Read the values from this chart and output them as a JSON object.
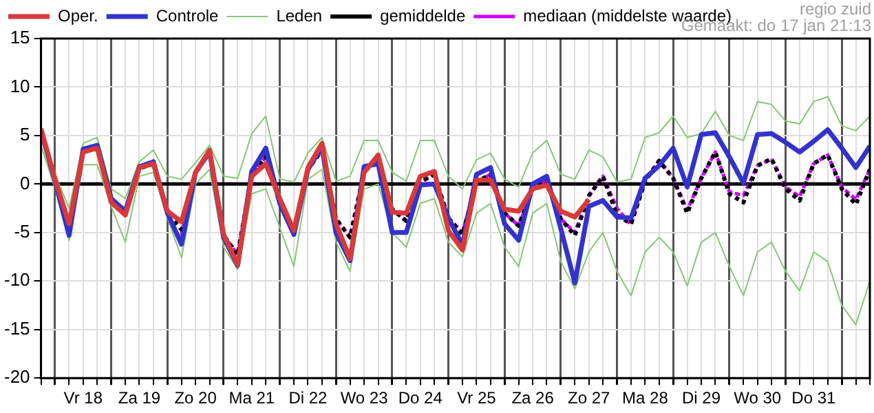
{
  "chart_data": {
    "type": "line",
    "annotations": [
      "regio zuid",
      "Gemaakt: do 17 jan 21:13"
    ],
    "x": [
      "--01-17T18:00",
      "--01-18T00:00",
      "--01-18T06:00",
      "--01-18T12:00",
      "--01-18T18:00",
      "--01-19T00:00",
      "--01-19T06:00",
      "--01-19T12:00",
      "--01-19T18:00",
      "--01-20T00:00",
      "--01-20T06:00",
      "--01-20T12:00",
      "--01-20T18:00",
      "--01-21T00:00",
      "--01-21T06:00",
      "--01-21T12:00",
      "--01-21T18:00",
      "--01-22T00:00",
      "--01-22T06:00",
      "--01-22T12:00",
      "--01-22T18:00",
      "--01-23T00:00",
      "--01-23T06:00",
      "--01-23T12:00",
      "--01-23T18:00",
      "--01-24T00:00",
      "--01-24T06:00",
      "--01-24T12:00",
      "--01-24T18:00",
      "--01-25T00:00",
      "--01-25T06:00",
      "--01-25T12:00",
      "--01-25T18:00",
      "--01-26T00:00",
      "--01-26T06:00",
      "--01-26T12:00",
      "--01-26T18:00",
      "--01-27T00:00",
      "--01-27T06:00",
      "--01-27T12:00",
      "--01-27T18:00",
      "--01-28T00:00",
      "--01-28T06:00",
      "--01-28T12:00",
      "--01-28T18:00",
      "--01-29T00:00",
      "--01-29T06:00",
      "--01-29T12:00",
      "--01-29T18:00",
      "--01-30T00:00",
      "--01-30T06:00",
      "--01-30T12:00",
      "--01-30T18:00",
      "--01-31T00:00",
      "--01-31T06:00",
      "--01-31T12:00",
      "--01-31T18:00",
      "--02-01T00:00",
      "--02-01T06:00",
      "--02-01T12:00"
    ],
    "series": [
      {
        "name": "Oper.",
        "color": "#d83a3a",
        "line_style": "solid",
        "values": [
          5.7,
          0.5,
          -4.1,
          3.3,
          3.7,
          -1.9,
          -3.2,
          1.7,
          2.1,
          -2.8,
          -3.9,
          1.2,
          3.5,
          -5.2,
          -8.3,
          0.8,
          2.1,
          -1.5,
          -4.8,
          1.7,
          4.2,
          -4.1,
          -7.7,
          1.2,
          3.0,
          -2.9,
          -3.0,
          0.8,
          1.3,
          -4.8,
          -6.8,
          0.4,
          0.4,
          -2.6,
          -2.8,
          -0.5,
          -0.1,
          -2.8,
          -3.4,
          -1.6,
          null,
          null,
          null,
          null,
          null,
          null,
          null,
          null,
          null,
          null,
          null,
          null,
          null,
          null,
          null,
          null,
          null,
          null,
          null,
          null
        ]
      },
      {
        "name": "Controle",
        "color": "#3333cc",
        "line_style": "solid",
        "values": [
          5.5,
          0.3,
          -5.3,
          3.6,
          4.0,
          -1.5,
          -2.8,
          1.8,
          2.3,
          -3.0,
          -6.2,
          1.2,
          3.3,
          -5.5,
          -8.4,
          1.3,
          3.7,
          -2.0,
          -5.2,
          1.5,
          3.8,
          -5.0,
          -7.9,
          1.8,
          2.1,
          -5.0,
          -5.0,
          -0.1,
          0.0,
          -3.5,
          -6.3,
          1.0,
          1.7,
          -4.1,
          -5.8,
          0.0,
          0.8,
          -4.6,
          -10.2,
          -2.3,
          -1.7,
          -3.4,
          -3.5,
          0.6,
          1.9,
          3.7,
          -0.3,
          5.1,
          5.3,
          2.8,
          0.1,
          5.1,
          5.2,
          4.3,
          3.3,
          4.4,
          5.6,
          3.7,
          1.7,
          3.9
        ]
      },
      {
        "name": "Leden",
        "color": "#86c776",
        "line_style": "solid",
        "values": [
          null,
          1.0,
          -2.5,
          4.2,
          4.8,
          -0.5,
          -1.5,
          2.3,
          3.5,
          0.8,
          0.5,
          2.2,
          4.0,
          0.8,
          0.6,
          5.2,
          7.0,
          0.5,
          0.2,
          3.2,
          4.8,
          0.3,
          0.8,
          4.5,
          4.5,
          1.2,
          0.3,
          4.5,
          4.5,
          0.8,
          -0.5,
          2.5,
          3.2,
          0.5,
          -0.3,
          3.2,
          4.5,
          1.0,
          0.5,
          3.5,
          2.8,
          0.2,
          0.5,
          4.8,
          5.3,
          7.0,
          4.8,
          5.2,
          7.5,
          5.0,
          4.5,
          8.5,
          8.2,
          6.5,
          6.2,
          8.5,
          9.0,
          6.0,
          5.5,
          7.0
        ]
      },
      {
        "name": "gemiddelde",
        "color": "#000000",
        "line_style": "dotted",
        "values": [
          5.5,
          0.3,
          null,
          null,
          3.8,
          -1.8,
          -3.0,
          1.6,
          2.1,
          -3.0,
          -4.7,
          1.3,
          3.3,
          -5.3,
          -7.3,
          1.0,
          2.8,
          -2.0,
          -5.2,
          1.5,
          3.5,
          -3.6,
          -5.5,
          1.3,
          2.6,
          -2.6,
          -3.8,
          0.2,
          1.0,
          -3.5,
          -5.2,
          0.2,
          1.0,
          -3.0,
          -4.3,
          -0.5,
          0.5,
          -3.6,
          -5.3,
          -1.2,
          0.8,
          -3.2,
          -4.1,
          0.3,
          2.4,
          0.6,
          -3.0,
          0.6,
          3.3,
          -1.0,
          -1.9,
          1.9,
          2.6,
          -0.5,
          -1.7,
          2.1,
          3.0,
          -0.5,
          -2.1,
          1.5
        ]
      },
      {
        "name": "mediaan (middelste waarde)",
        "color": "#cc00ff",
        "line_style": "dashed",
        "values": [
          null,
          null,
          null,
          null,
          null,
          null,
          null,
          null,
          null,
          null,
          -5.3,
          1.3,
          3.3,
          -5.3,
          -7.3,
          1.0,
          2.8,
          -2.0,
          -4.6,
          1.5,
          3.5,
          -3.6,
          -5.5,
          1.3,
          2.6,
          -2.6,
          -3.8,
          0.2,
          1.0,
          -3.5,
          -5.0,
          0.2,
          1.0,
          -3.0,
          -4.3,
          -0.5,
          0.5,
          -3.6,
          -5.0,
          -1.2,
          0.8,
          -2.5,
          -4.2,
          0.3,
          2.4,
          0.6,
          -2.7,
          0.6,
          3.3,
          -0.8,
          -1.2,
          1.9,
          2.6,
          -0.3,
          -1.3,
          2.1,
          3.0,
          -0.3,
          -1.6,
          1.5
        ]
      },
      {
        "color": "#86c776",
        "line_style": "solid",
        "values": [
          4.0,
          -0.5,
          -5.8,
          2.0,
          2.0,
          -2.3,
          -6.0,
          0.8,
          1.2,
          -3.5,
          -7.6,
          0.0,
          1.5,
          -6.5,
          -8.8,
          -1.0,
          -0.5,
          -4.5,
          -8.5,
          0.5,
          1.5,
          -6.0,
          -9.0,
          -0.5,
          0.0,
          -5.0,
          -6.5,
          -2.0,
          -1.5,
          -6.0,
          -7.5,
          -3.0,
          -2.0,
          -6.5,
          -8.5,
          -3.0,
          -2.0,
          -8.0,
          -10.8,
          -7.0,
          -5.0,
          -9.0,
          -11.5,
          -7.0,
          -5.5,
          -7.0,
          -10.5,
          -6.0,
          -5.0,
          -8.5,
          -11.5,
          -7.0,
          -6.0,
          -9.0,
          -11.0,
          -7.0,
          -8.0,
          -12.5,
          -14.5,
          -10.0
        ]
      }
    ],
    "xlim": [
      "--01-17T18:00",
      "--02-01T12:00"
    ],
    "xticks": [
      {
        "value": "--01-17T18:00",
        "label": null
      },
      {
        "value": "--01-18T00:00",
        "label": null
      },
      {
        "value": "--01-18T06:00",
        "label": null
      },
      {
        "value": "--01-18T12:00",
        "label": "Vr 18"
      },
      {
        "value": "--01-18T18:00",
        "label": null
      },
      {
        "value": "--01-19T00:00",
        "label": null
      },
      {
        "value": "--01-19T06:00",
        "label": null
      },
      {
        "value": "--01-19T12:00",
        "label": "Za 19"
      },
      {
        "value": "--01-19T18:00",
        "label": null
      },
      {
        "value": "--01-20T00:00",
        "label": null
      },
      {
        "value": "--01-20T06:00",
        "label": null
      },
      {
        "value": "--01-20T12:00",
        "label": "Zo 20"
      },
      {
        "value": "--01-20T18:00",
        "label": null
      },
      {
        "value": "--01-21T00:00",
        "label": null
      },
      {
        "value": "--01-21T06:00",
        "label": null
      },
      {
        "value": "--01-21T12:00",
        "label": "Ma 21"
      },
      {
        "value": "--01-21T18:00",
        "label": null
      },
      {
        "value": "--01-22T00:00",
        "label": null
      },
      {
        "value": "--01-22T06:00",
        "label": null
      },
      {
        "value": "--01-22T12:00",
        "label": "Di 22"
      },
      {
        "value": "--01-22T18:00",
        "label": null
      },
      {
        "value": "--01-23T00:00",
        "label": null
      },
      {
        "value": "--01-23T06:00",
        "label": null
      },
      {
        "value": "--01-23T12:00",
        "label": "Wo 23"
      },
      {
        "value": "--01-23T18:00",
        "label": null
      },
      {
        "value": "--01-24T00:00",
        "label": null
      },
      {
        "value": "--01-24T06:00",
        "label": null
      },
      {
        "value": "--01-24T12:00",
        "label": "Do 24"
      },
      {
        "value": "--01-24T18:00",
        "label": null
      },
      {
        "value": "--01-25T00:00",
        "label": null
      },
      {
        "value": "--01-25T06:00",
        "label": null
      },
      {
        "value": "--01-25T12:00",
        "label": "Vr 25"
      },
      {
        "value": "--01-25T18:00",
        "label": null
      },
      {
        "value": "--01-26T00:00",
        "label": null
      },
      {
        "value": "--01-26T06:00",
        "label": null
      },
      {
        "value": "--01-26T12:00",
        "label": "Za 26"
      },
      {
        "value": "--01-26T18:00",
        "label": null
      },
      {
        "value": "--01-27T00:00",
        "label": null
      },
      {
        "value": "--01-27T06:00",
        "label": null
      },
      {
        "value": "--01-27T12:00",
        "label": "Zo 27"
      },
      {
        "value": "--01-27T18:00",
        "label": null
      },
      {
        "value": "--01-28T00:00",
        "label": null
      },
      {
        "value": "--01-28T06:00",
        "label": null
      },
      {
        "value": "--01-28T12:00",
        "label": "Ma 28"
      },
      {
        "value": "--01-28T18:00",
        "label": null
      },
      {
        "value": "--01-29T00:00",
        "label": null
      },
      {
        "value": "--01-29T06:00",
        "label": null
      },
      {
        "value": "--01-29T12:00",
        "label": "Di 29"
      },
      {
        "value": "--01-29T18:00",
        "label": null
      },
      {
        "value": "--01-30T00:00",
        "label": null
      },
      {
        "value": "--01-30T06:00",
        "label": null
      },
      {
        "value": "--01-30T12:00",
        "label": "Wo 30"
      },
      {
        "value": "--01-30T18:00",
        "label": null
      },
      {
        "value": "--01-31T00:00",
        "label": null
      },
      {
        "value": "--01-31T06:00",
        "label": null
      },
      {
        "value": "--01-31T12:00",
        "label": "Do 31"
      },
      {
        "value": "--01-31T18:00",
        "label": null
      },
      {
        "value": "--02-01T00:00",
        "label": null
      },
      {
        "value": "--02-01T06:00",
        "label": null
      },
      {
        "value": "--02-01T12:00",
        "label": null
      }
    ],
    "ylim": [
      -20,
      15
    ],
    "yticks": [
      -20,
      -15,
      -10,
      -5,
      0,
      5,
      10,
      15
    ],
    "ref_lines": [
      {
        "axis": "y",
        "value": 0,
        "color": "#000000"
      }
    ],
    "grid": true,
    "legend": "top",
    "marker": "none"
  }
}
